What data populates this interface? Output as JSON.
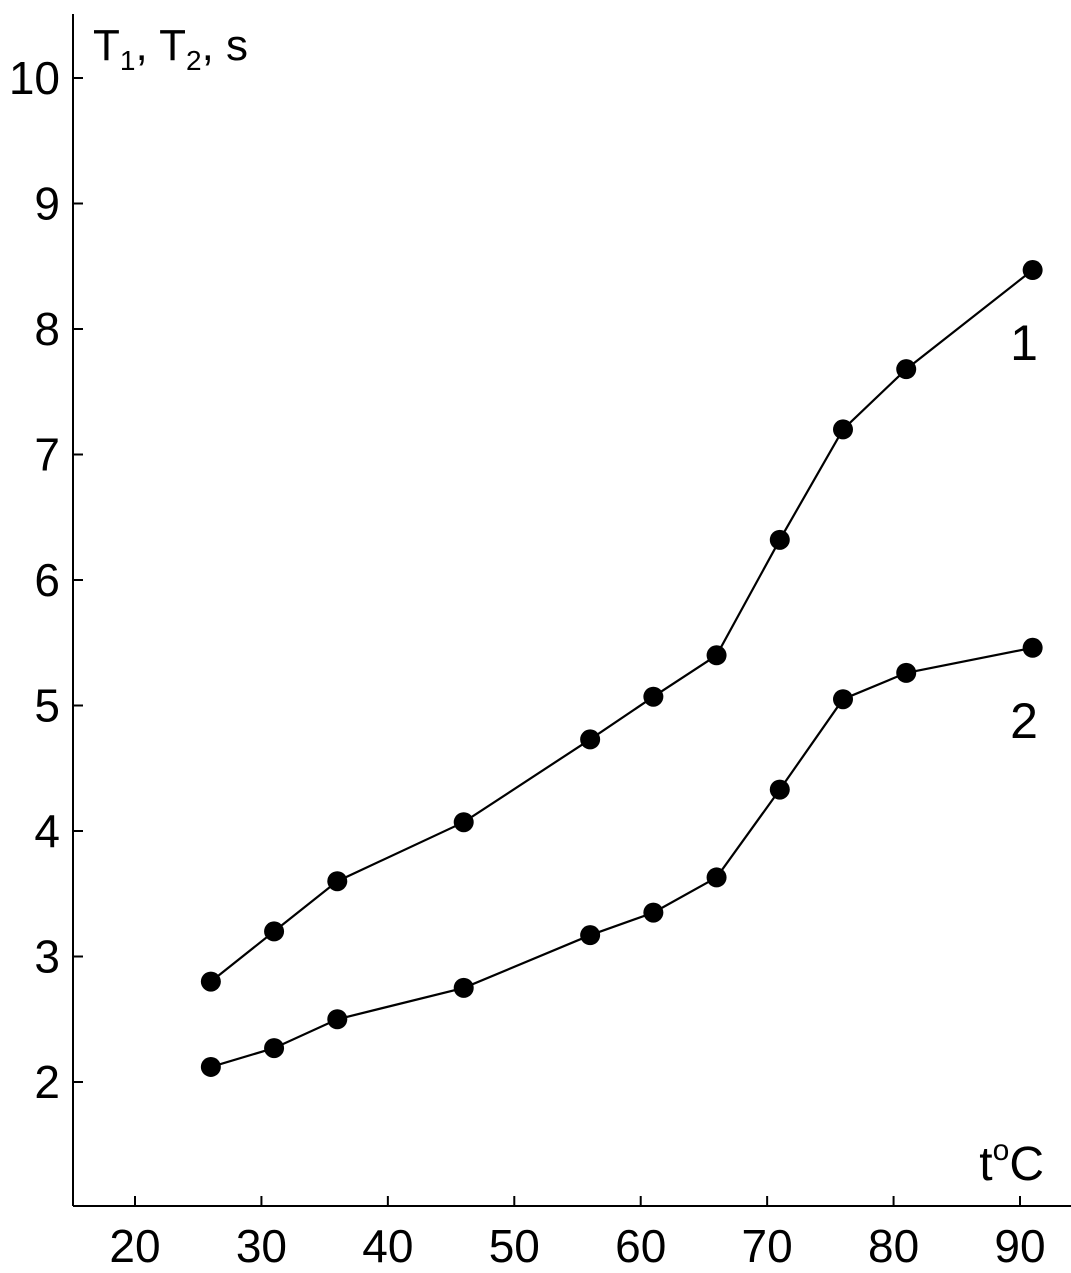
{
  "chart_data": {
    "type": "line",
    "ylabel_parts": {
      "t1_base": "T",
      "t1_sub": "1",
      "sep1": ", ",
      "t2_base": "T",
      "t2_sub": "2",
      "sep2": ", ",
      "unit": "s"
    },
    "xlabel_parts": {
      "base": "t",
      "sup": "o",
      "unit": "C"
    },
    "xlim": [
      15,
      95
    ],
    "ylim": [
      1,
      10.5
    ],
    "x_ticks": [
      20,
      30,
      40,
      50,
      60,
      70,
      80,
      90
    ],
    "y_ticks": [
      2,
      3,
      4,
      5,
      6,
      7,
      8,
      9,
      10
    ],
    "x_tick_labels": [
      "20",
      "30",
      "40",
      "50",
      "60",
      "70",
      "80",
      "90"
    ],
    "y_tick_labels": [
      "2",
      "3",
      "4",
      "5",
      "6",
      "7",
      "8",
      "9",
      "10"
    ],
    "grid": false,
    "series": [
      {
        "name": "1",
        "x": [
          26,
          31,
          36,
          46,
          56,
          61,
          66,
          71,
          76,
          81,
          91
        ],
        "y": [
          2.8,
          3.2,
          3.6,
          4.07,
          4.73,
          5.07,
          5.4,
          6.32,
          7.2,
          7.68,
          8.47
        ]
      },
      {
        "name": "2",
        "x": [
          26,
          31,
          36,
          46,
          56,
          61,
          66,
          71,
          76,
          81,
          91
        ],
        "y": [
          2.12,
          2.27,
          2.5,
          2.75,
          3.17,
          3.35,
          3.63,
          4.33,
          5.05,
          5.26,
          5.46
        ]
      }
    ]
  }
}
